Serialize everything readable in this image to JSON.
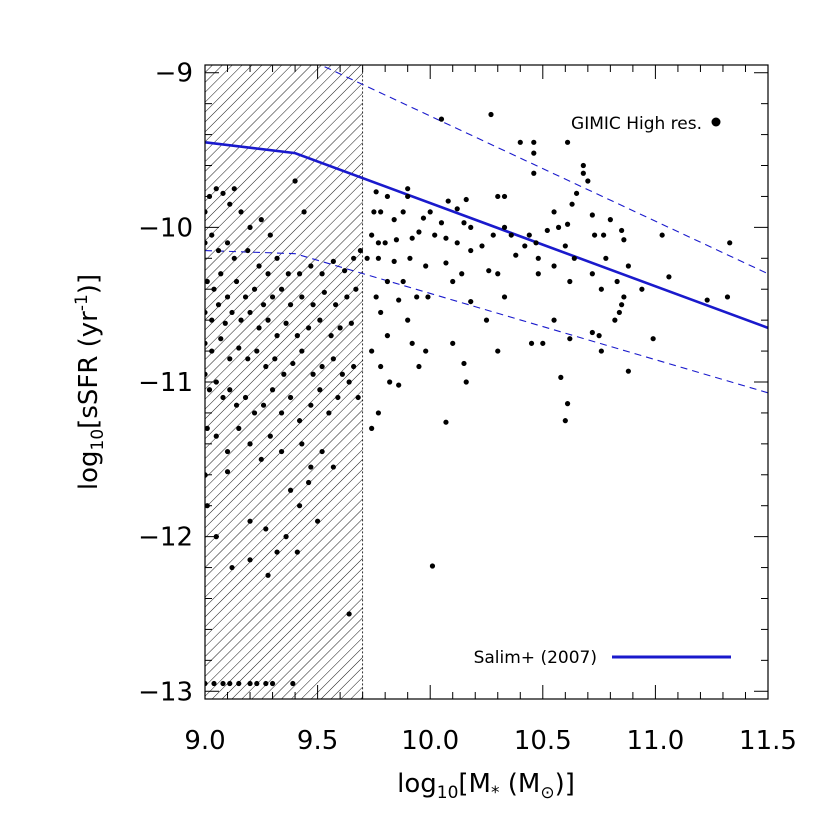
{
  "chart_data": {
    "type": "scatter",
    "xlim": [
      9.0,
      11.5
    ],
    "ylim": [
      -13.05,
      -8.95
    ],
    "xticks": [
      "9.0",
      "9.5",
      "10.0",
      "10.5",
      "11.0",
      "11.5"
    ],
    "yticks": [
      "-9",
      "-10",
      "-11",
      "-12",
      "-13"
    ],
    "xlabel": {
      "base": "log",
      "sub": "10",
      "rest": "[M",
      "sub2": "*",
      "tail": " (M",
      "sym": "⊙",
      "end": ")]"
    },
    "ylabel": {
      "base": "log",
      "sub": "10",
      "rest": "[sSFR (yr",
      "sup": "-1",
      "end": ")]"
    },
    "shaded_region": {
      "x_from": 9.0,
      "x_to": 9.7
    },
    "legend": {
      "points_label": "GIMIC High res.",
      "line_label": "Salim+ (2007)"
    },
    "colors": {
      "fit_line": "#1a1acc",
      "points": "#000000",
      "frame": "#000000"
    },
    "series": [
      {
        "name": "GIMIC High res.",
        "kind": "points",
        "points": [
          [
            10.05,
            -9.3
          ],
          [
            10.27,
            -9.27
          ],
          [
            10.4,
            -9.45
          ],
          [
            10.46,
            -9.45
          ],
          [
            10.46,
            -9.52
          ],
          [
            10.46,
            -9.65
          ],
          [
            10.61,
            -9.45
          ],
          [
            10.68,
            -9.6
          ],
          [
            10.68,
            -9.65
          ],
          [
            10.7,
            -9.7
          ],
          [
            9.76,
            -9.77
          ],
          [
            9.81,
            -9.8
          ],
          [
            9.9,
            -9.75
          ],
          [
            9.9,
            -9.8
          ],
          [
            10.08,
            -9.83
          ],
          [
            10.12,
            -9.88
          ],
          [
            10.16,
            -9.82
          ],
          [
            10.3,
            -9.8
          ],
          [
            10.33,
            -9.8
          ],
          [
            10.63,
            -9.85
          ],
          [
            10.65,
            -9.78
          ],
          [
            10.55,
            -9.9
          ],
          [
            9.75,
            -9.9
          ],
          [
            9.78,
            -9.9
          ],
          [
            9.84,
            -9.95
          ],
          [
            9.88,
            -9.9
          ],
          [
            9.97,
            -9.94
          ],
          [
            10.0,
            -9.9
          ],
          [
            10.05,
            -9.97
          ],
          [
            10.15,
            -9.97
          ],
          [
            10.18,
            -10.0
          ],
          [
            10.28,
            -10.05
          ],
          [
            10.33,
            -10.0
          ],
          [
            10.44,
            -10.05
          ],
          [
            10.52,
            -10.02
          ],
          [
            10.57,
            -10.0
          ],
          [
            10.61,
            -9.98
          ],
          [
            10.72,
            -9.92
          ],
          [
            10.8,
            -9.95
          ],
          [
            10.85,
            -10.02
          ],
          [
            9.74,
            -10.05
          ],
          [
            9.77,
            -10.1
          ],
          [
            9.8,
            -10.1
          ],
          [
            9.85,
            -10.08
          ],
          [
            9.92,
            -10.07
          ],
          [
            9.95,
            -10.03
          ],
          [
            10.02,
            -10.05
          ],
          [
            10.07,
            -10.07
          ],
          [
            10.12,
            -10.1
          ],
          [
            10.18,
            -10.15
          ],
          [
            10.23,
            -10.12
          ],
          [
            10.36,
            -10.05
          ],
          [
            10.42,
            -10.12
          ],
          [
            10.47,
            -10.1
          ],
          [
            10.6,
            -10.12
          ],
          [
            10.73,
            -10.05
          ],
          [
            10.77,
            -10.05
          ],
          [
            10.86,
            -10.08
          ],
          [
            11.03,
            -10.05
          ],
          [
            11.33,
            -10.1
          ],
          [
            9.72,
            -10.2
          ],
          [
            9.77,
            -10.2
          ],
          [
            9.84,
            -10.22
          ],
          [
            9.91,
            -10.2
          ],
          [
            9.98,
            -10.25
          ],
          [
            10.07,
            -10.23
          ],
          [
            10.14,
            -10.3
          ],
          [
            10.26,
            -10.28
          ],
          [
            10.38,
            -10.18
          ],
          [
            10.48,
            -10.2
          ],
          [
            10.55,
            -10.25
          ],
          [
            10.64,
            -10.2
          ],
          [
            10.72,
            -10.3
          ],
          [
            10.78,
            -10.2
          ],
          [
            10.88,
            -10.25
          ],
          [
            11.06,
            -10.32
          ],
          [
            9.81,
            -10.35
          ],
          [
            9.88,
            -10.35
          ],
          [
            10.1,
            -10.35
          ],
          [
            10.3,
            -10.3
          ],
          [
            10.48,
            -10.3
          ],
          [
            10.62,
            -10.35
          ],
          [
            10.76,
            -10.4
          ],
          [
            10.83,
            -10.35
          ],
          [
            10.86,
            -10.45
          ],
          [
            10.94,
            -10.4
          ],
          [
            9.76,
            -10.45
          ],
          [
            9.86,
            -10.47
          ],
          [
            9.94,
            -10.45
          ],
          [
            9.99,
            -10.45
          ],
          [
            10.18,
            -10.48
          ],
          [
            10.33,
            -10.45
          ],
          [
            10.85,
            -10.5
          ],
          [
            10.84,
            -10.55
          ],
          [
            11.23,
            -10.47
          ],
          [
            11.32,
            -10.45
          ],
          [
            9.78,
            -10.55
          ],
          [
            9.9,
            -10.6
          ],
          [
            10.25,
            -10.6
          ],
          [
            10.55,
            -10.6
          ],
          [
            10.82,
            -10.6
          ],
          [
            10.72,
            -10.68
          ],
          [
            9.81,
            -10.7
          ],
          [
            9.92,
            -10.75
          ],
          [
            10.1,
            -10.75
          ],
          [
            10.45,
            -10.75
          ],
          [
            10.5,
            -10.75
          ],
          [
            10.62,
            -10.72
          ],
          [
            10.75,
            -10.7
          ],
          [
            10.99,
            -10.72
          ],
          [
            9.74,
            -10.8
          ],
          [
            9.98,
            -10.8
          ],
          [
            10.3,
            -10.8
          ],
          [
            10.76,
            -10.8
          ],
          [
            9.78,
            -10.9
          ],
          [
            9.95,
            -10.9
          ],
          [
            10.15,
            -10.88
          ],
          [
            10.88,
            -10.93
          ],
          [
            10.58,
            -10.97
          ],
          [
            9.82,
            -11.0
          ],
          [
            9.86,
            -11.02
          ],
          [
            10.16,
            -11.0
          ],
          [
            10.61,
            -11.14
          ],
          [
            10.6,
            -11.25
          ],
          [
            10.07,
            -11.26
          ],
          [
            9.74,
            -11.3
          ],
          [
            9.77,
            -11.2
          ],
          [
            10.01,
            -12.19
          ],
          [
            9.0,
            -9.9
          ],
          [
            9.02,
            -9.8
          ],
          [
            9.05,
            -9.75
          ],
          [
            9.08,
            -9.78
          ],
          [
            9.11,
            -9.85
          ],
          [
            9.13,
            -9.75
          ],
          [
            9.16,
            -9.9
          ],
          [
            9.2,
            -10.0
          ],
          [
            9.25,
            -9.95
          ],
          [
            9.29,
            -10.05
          ],
          [
            9.4,
            -9.7
          ],
          [
            9.44,
            -9.9
          ],
          [
            9.0,
            -10.1
          ],
          [
            9.03,
            -10.05
          ],
          [
            9.06,
            -10.15
          ],
          [
            9.1,
            -10.1
          ],
          [
            9.13,
            -10.2
          ],
          [
            9.19,
            -10.15
          ],
          [
            9.24,
            -10.25
          ],
          [
            9.28,
            -10.3
          ],
          [
            9.32,
            -10.2
          ],
          [
            9.37,
            -10.3
          ],
          [
            9.42,
            -10.3
          ],
          [
            9.47,
            -10.25
          ],
          [
            9.52,
            -10.3
          ],
          [
            9.57,
            -10.22
          ],
          [
            9.62,
            -10.28
          ],
          [
            9.66,
            -10.2
          ],
          [
            9.69,
            -10.15
          ],
          [
            9.01,
            -10.35
          ],
          [
            9.04,
            -10.4
          ],
          [
            9.07,
            -10.3
          ],
          [
            9.1,
            -10.45
          ],
          [
            9.14,
            -10.35
          ],
          [
            9.18,
            -10.45
          ],
          [
            9.22,
            -10.4
          ],
          [
            9.26,
            -10.5
          ],
          [
            9.3,
            -10.45
          ],
          [
            9.34,
            -10.4
          ],
          [
            9.38,
            -10.5
          ],
          [
            9.43,
            -10.45
          ],
          [
            9.48,
            -10.5
          ],
          [
            9.53,
            -10.42
          ],
          [
            9.58,
            -10.5
          ],
          [
            9.63,
            -10.45
          ],
          [
            9.67,
            -10.4
          ],
          [
            9.0,
            -10.55
          ],
          [
            9.03,
            -10.6
          ],
          [
            9.06,
            -10.5
          ],
          [
            9.09,
            -10.62
          ],
          [
            9.12,
            -10.55
          ],
          [
            9.16,
            -10.6
          ],
          [
            9.2,
            -10.55
          ],
          [
            9.24,
            -10.65
          ],
          [
            9.28,
            -10.6
          ],
          [
            9.32,
            -10.7
          ],
          [
            9.36,
            -10.62
          ],
          [
            9.41,
            -10.7
          ],
          [
            9.46,
            -10.65
          ],
          [
            9.51,
            -10.6
          ],
          [
            9.56,
            -10.7
          ],
          [
            9.6,
            -10.65
          ],
          [
            9.65,
            -10.62
          ],
          [
            9.0,
            -10.75
          ],
          [
            9.03,
            -10.8
          ],
          [
            9.07,
            -10.72
          ],
          [
            9.11,
            -10.85
          ],
          [
            9.15,
            -10.78
          ],
          [
            9.19,
            -10.85
          ],
          [
            9.23,
            -10.8
          ],
          [
            9.27,
            -10.9
          ],
          [
            9.31,
            -10.85
          ],
          [
            9.35,
            -10.95
          ],
          [
            9.39,
            -10.88
          ],
          [
            9.43,
            -10.8
          ],
          [
            9.48,
            -10.95
          ],
          [
            9.52,
            -10.9
          ],
          [
            9.57,
            -10.85
          ],
          [
            9.61,
            -10.95
          ],
          [
            9.66,
            -10.9
          ],
          [
            9.0,
            -10.95
          ],
          [
            9.02,
            -11.05
          ],
          [
            9.05,
            -11.0
          ],
          [
            9.08,
            -11.1
          ],
          [
            9.11,
            -11.05
          ],
          [
            9.14,
            -11.15
          ],
          [
            9.18,
            -11.1
          ],
          [
            9.22,
            -11.2
          ],
          [
            9.26,
            -11.15
          ],
          [
            9.3,
            -11.05
          ],
          [
            9.34,
            -11.2
          ],
          [
            9.38,
            -11.1
          ],
          [
            9.42,
            -11.25
          ],
          [
            9.47,
            -11.15
          ],
          [
            9.51,
            -11.05
          ],
          [
            9.55,
            -11.2
          ],
          [
            9.59,
            -11.1
          ],
          [
            9.64,
            -11.0
          ],
          [
            9.68,
            -11.1
          ],
          [
            9.01,
            -11.3
          ],
          [
            9.05,
            -11.35
          ],
          [
            9.1,
            -11.45
          ],
          [
            9.15,
            -11.3
          ],
          [
            9.2,
            -11.4
          ],
          [
            9.25,
            -11.5
          ],
          [
            9.29,
            -11.35
          ],
          [
            9.34,
            -11.45
          ],
          [
            9.43,
            -11.4
          ],
          [
            9.47,
            -11.55
          ],
          [
            9.52,
            -11.45
          ],
          [
            9.0,
            -11.6
          ],
          [
            9.1,
            -11.58
          ],
          [
            9.38,
            -11.7
          ],
          [
            9.46,
            -11.65
          ],
          [
            9.57,
            -11.55
          ],
          [
            9.42,
            -11.8
          ],
          [
            9.01,
            -11.8
          ],
          [
            9.05,
            -12.0
          ],
          [
            9.2,
            -11.9
          ],
          [
            9.27,
            -11.95
          ],
          [
            9.36,
            -12.0
          ],
          [
            9.5,
            -11.9
          ],
          [
            9.32,
            -12.1
          ],
          [
            9.41,
            -12.1
          ],
          [
            9.12,
            -12.2
          ],
          [
            9.28,
            -12.25
          ],
          [
            9.64,
            -12.5
          ],
          [
            9.2,
            -12.15
          ],
          [
            9.0,
            -12.95
          ],
          [
            9.04,
            -12.95
          ],
          [
            9.08,
            -12.95
          ],
          [
            9.11,
            -12.95
          ],
          [
            9.15,
            -12.95
          ],
          [
            9.2,
            -12.95
          ],
          [
            9.23,
            -12.95
          ],
          [
            9.27,
            -12.95
          ],
          [
            9.3,
            -12.95
          ],
          [
            9.39,
            -12.95
          ]
        ]
      },
      {
        "name": "Salim+ (2007)",
        "kind": "line",
        "points": [
          [
            9.0,
            -9.45
          ],
          [
            9.4,
            -9.52
          ],
          [
            11.5,
            -10.65
          ]
        ]
      },
      {
        "kind": "dashed",
        "points": [
          [
            9.0,
            -8.6
          ],
          [
            11.5,
            -10.3
          ]
        ]
      },
      {
        "kind": "dashed",
        "points": [
          [
            9.0,
            -10.15
          ],
          [
            9.4,
            -10.17
          ],
          [
            11.5,
            -11.07
          ]
        ]
      }
    ]
  }
}
